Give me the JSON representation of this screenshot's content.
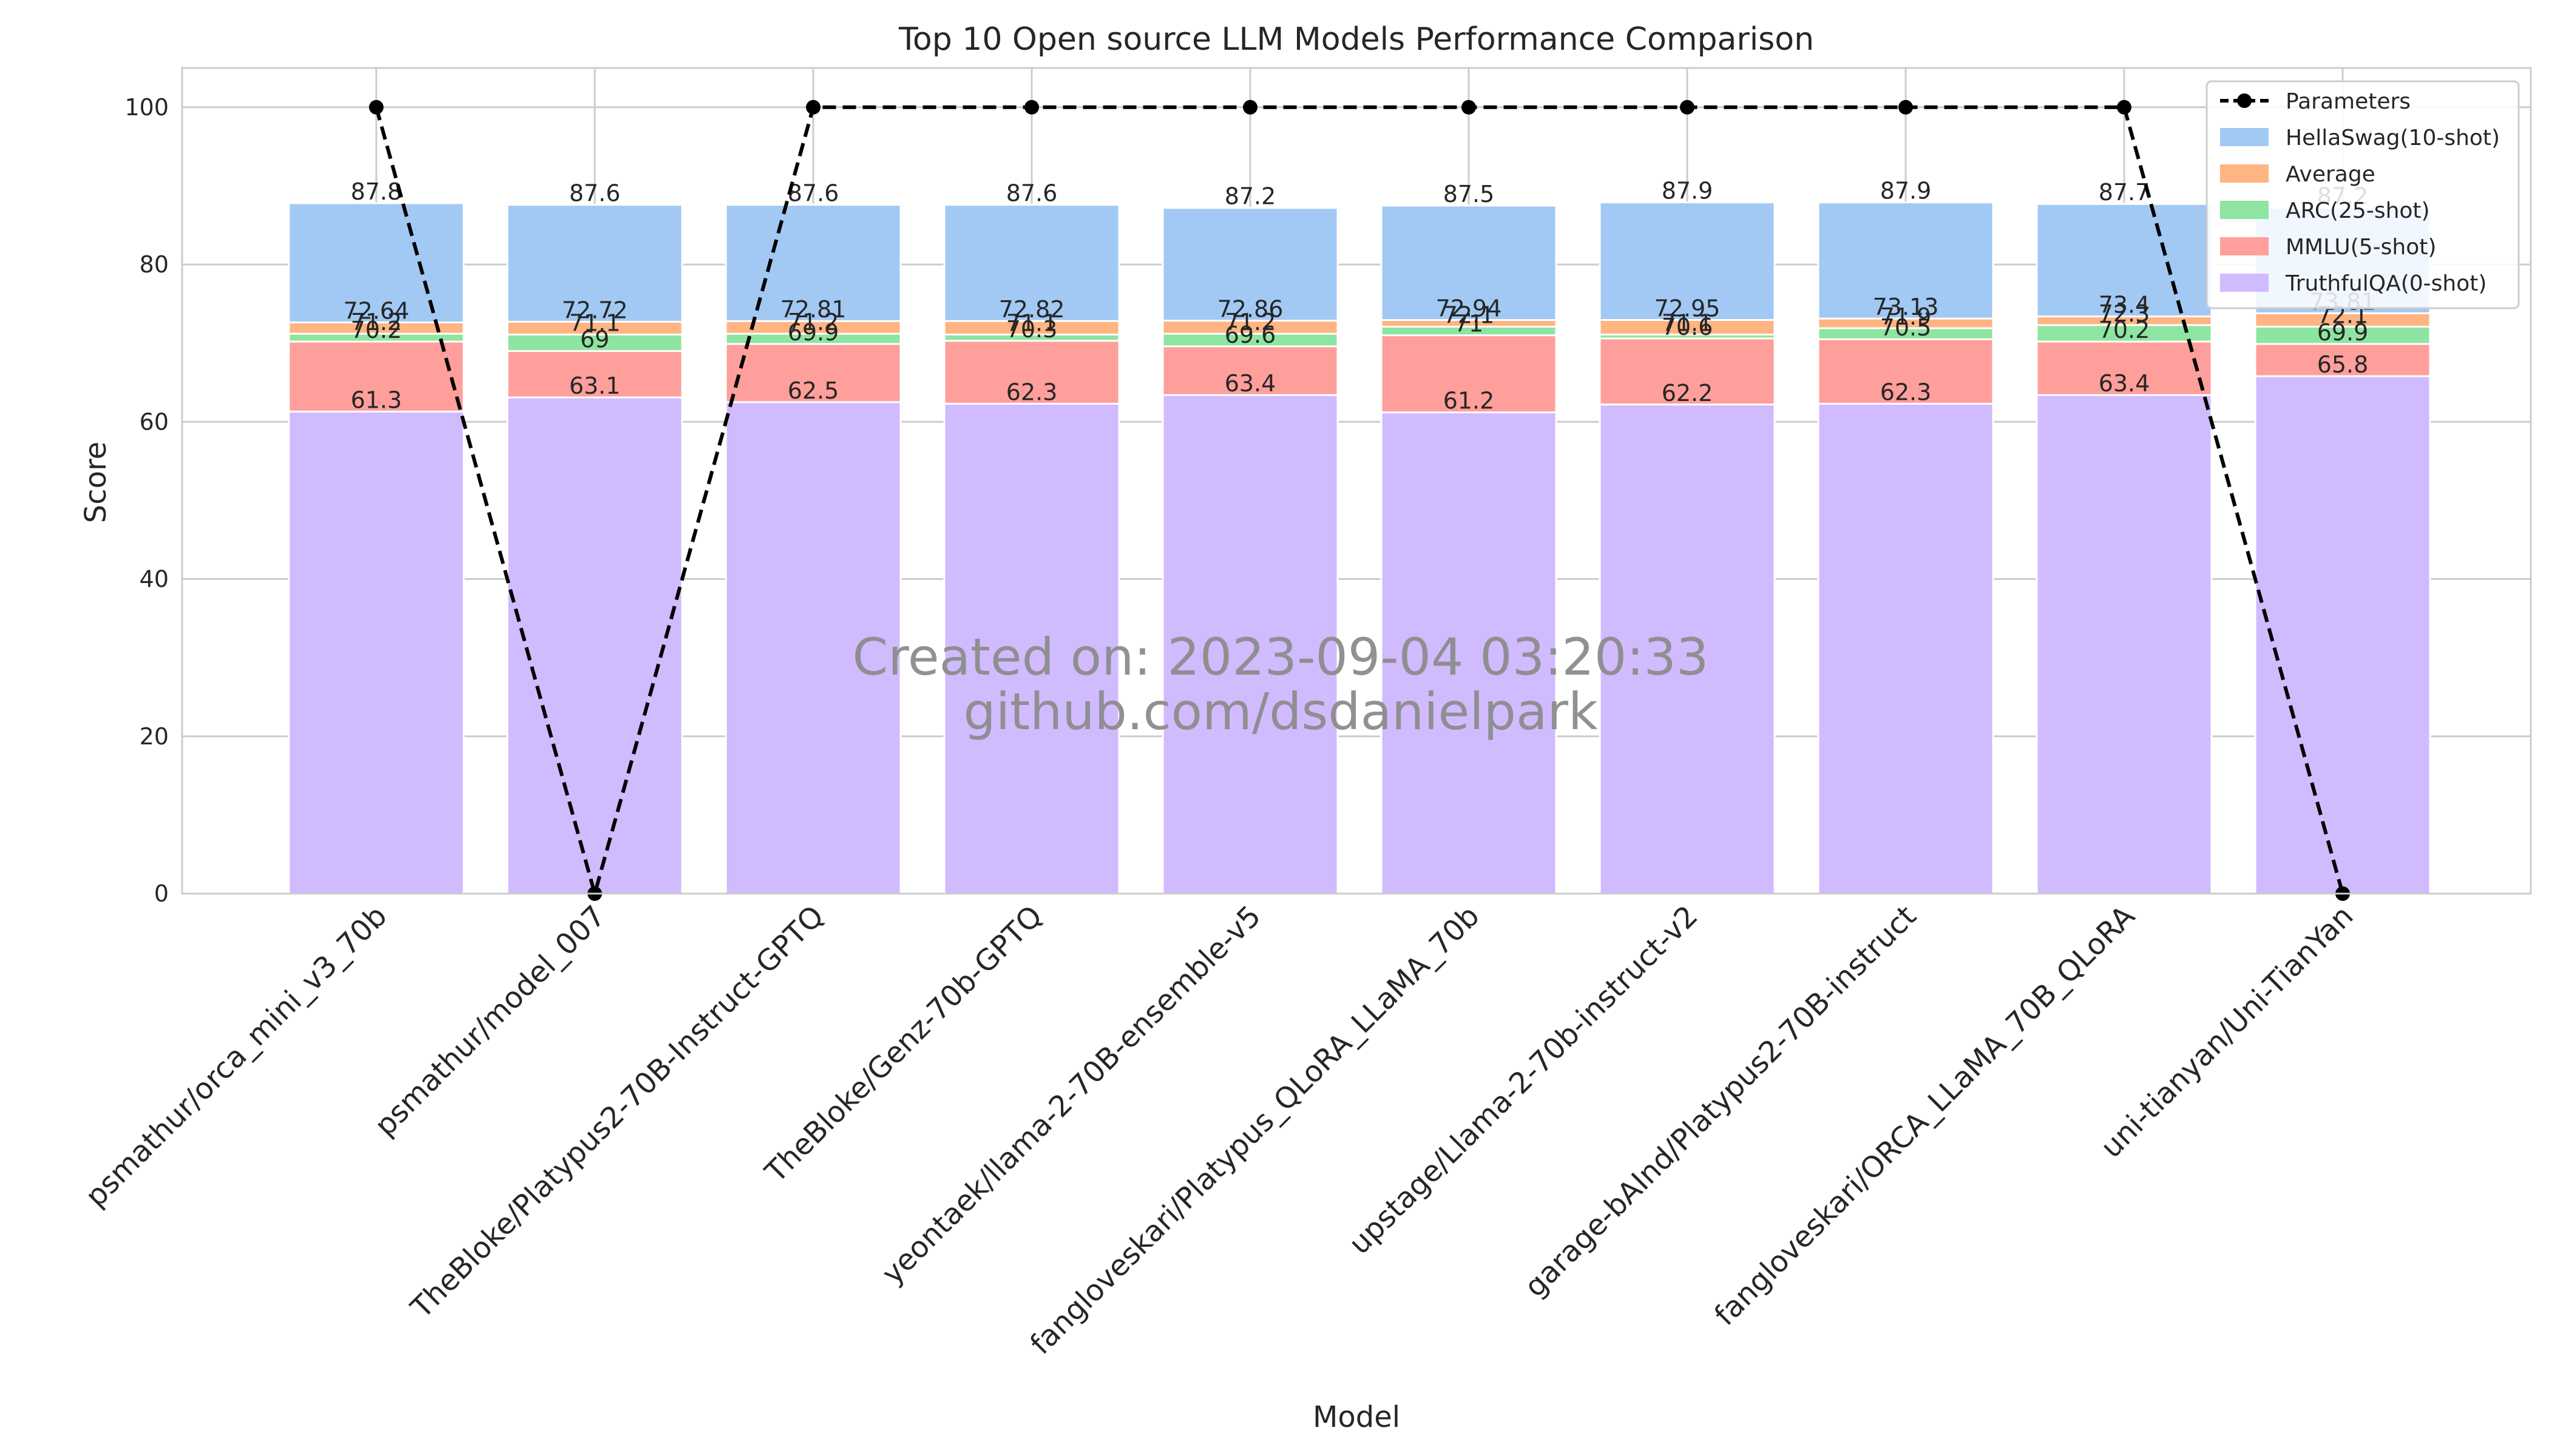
{
  "chart_data": {
    "type": "bar",
    "title": "Top 10 Open source LLM Models Performance Comparison",
    "xlabel": "Model",
    "ylabel": "Score",
    "ylim": [
      0,
      105
    ],
    "yticks": [
      0,
      20,
      40,
      60,
      80,
      100
    ],
    "grid": true,
    "legend_position": "top-right",
    "categories": [
      "psmathur/orca_mini_v3_70b",
      "psmathur/model_007",
      "TheBloke/Platypus2-70B-Instruct-GPTQ",
      "TheBloke/Genz-70b-GPTQ",
      "yeontaek/llama-2-70B-ensemble-v5",
      "fangloveskari/Platypus_QLoRA_LLaMA_70b",
      "upstage/Llama-2-70b-instruct-v2",
      "garage-bAInd/Platypus2-70B-instruct",
      "fangloveskari/ORCA_LLaMA_70B_QLoRA",
      "uni-tianyan/Uni-TianYan"
    ],
    "series": [
      {
        "name": "HellaSwag(10-shot)",
        "kind": "bar",
        "color": "#a1c9f4",
        "values": [
          87.8,
          87.6,
          87.6,
          87.6,
          87.2,
          87.5,
          87.9,
          87.9,
          87.7,
          87.2
        ]
      },
      {
        "name": "Average",
        "kind": "bar",
        "color": "#ffb482",
        "values": [
          72.64,
          72.72,
          72.81,
          72.82,
          72.86,
          72.94,
          72.95,
          73.13,
          73.4,
          73.81
        ]
      },
      {
        "name": "ARC(25-shot)",
        "kind": "bar",
        "color": "#8de5a1",
        "values": [
          71.2,
          71.1,
          71.2,
          71.1,
          71.2,
          72.1,
          71.1,
          71.9,
          72.3,
          72.1
        ]
      },
      {
        "name": "MMLU(5-shot)",
        "kind": "bar",
        "color": "#ff9f9b",
        "values": [
          70.2,
          69.0,
          69.9,
          70.3,
          69.6,
          71.0,
          70.6,
          70.5,
          70.2,
          69.9
        ]
      },
      {
        "name": "TruthfulQA(0-shot)",
        "kind": "bar",
        "color": "#d0bbff",
        "values": [
          61.3,
          63.1,
          62.5,
          62.3,
          63.4,
          61.2,
          62.2,
          62.3,
          63.4,
          65.8
        ]
      },
      {
        "name": "Parameters",
        "kind": "line",
        "color": "#000000",
        "style": "dashed",
        "marker": "circle",
        "values": [
          100,
          0,
          100,
          100,
          100,
          100,
          100,
          100,
          100,
          0
        ]
      }
    ],
    "legend_order": [
      "Parameters",
      "HellaSwag(10-shot)",
      "Average",
      "ARC(25-shot)",
      "MMLU(5-shot)",
      "TruthfulQA(0-shot)"
    ],
    "annotations": [
      "Created on: 2023-09-04 03:20:33",
      "github.com/dsdanielpark"
    ]
  }
}
